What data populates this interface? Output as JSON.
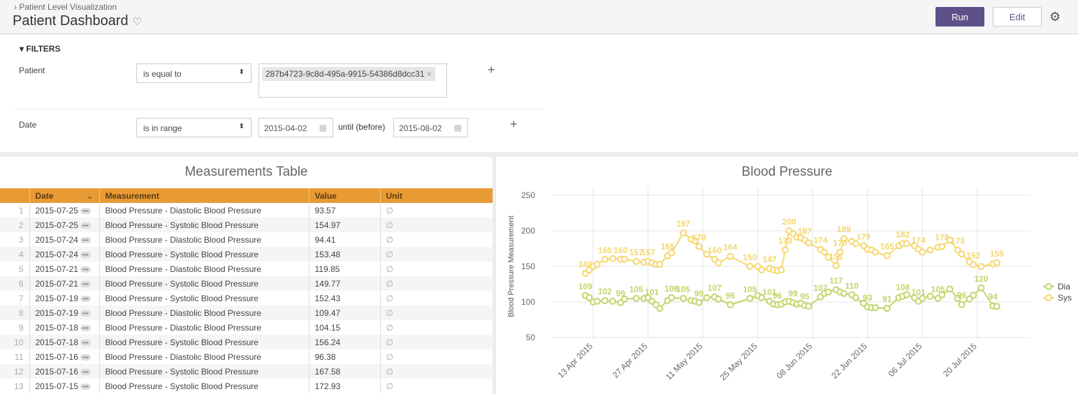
{
  "header": {
    "breadcrumb": "Patient Level Visualization",
    "title": "Patient Dashboard",
    "run_label": "Run",
    "edit_label": "Edit"
  },
  "filters": {
    "title": "FILTERS",
    "patient": {
      "label": "Patient",
      "operator": "is equal to",
      "value": "287b4723-9c8d-495a-9915-54386d8dcc31"
    },
    "date": {
      "label": "Date",
      "operator": "is in range",
      "from": "2015-04-02",
      "until_label": "until (before)",
      "to": "2015-08-02"
    }
  },
  "table": {
    "title": "Measurements Table",
    "columns": [
      "Date",
      "Measurement",
      "Value",
      "Unit"
    ],
    "rows": [
      [
        "1",
        "2015-07-25",
        "Blood Pressure - Diastolic Blood Pressure",
        "93.57",
        "∅"
      ],
      [
        "2",
        "2015-07-25",
        "Blood Pressure - Systolic Blood Pressure",
        "154.97",
        "∅"
      ],
      [
        "3",
        "2015-07-24",
        "Blood Pressure - Diastolic Blood Pressure",
        "94.41",
        "∅"
      ],
      [
        "4",
        "2015-07-24",
        "Blood Pressure - Systolic Blood Pressure",
        "153.48",
        "∅"
      ],
      [
        "5",
        "2015-07-21",
        "Blood Pressure - Diastolic Blood Pressure",
        "119.85",
        "∅"
      ],
      [
        "6",
        "2015-07-21",
        "Blood Pressure - Systolic Blood Pressure",
        "149.77",
        "∅"
      ],
      [
        "7",
        "2015-07-19",
        "Blood Pressure - Systolic Blood Pressure",
        "152.43",
        "∅"
      ],
      [
        "8",
        "2015-07-19",
        "Blood Pressure - Diastolic Blood Pressure",
        "109.47",
        "∅"
      ],
      [
        "9",
        "2015-07-18",
        "Blood Pressure - Diastolic Blood Pressure",
        "104.15",
        "∅"
      ],
      [
        "10",
        "2015-07-18",
        "Blood Pressure - Systolic Blood Pressure",
        "156.24",
        "∅"
      ],
      [
        "11",
        "2015-07-16",
        "Blood Pressure - Diastolic Blood Pressure",
        "96.38",
        "∅"
      ],
      [
        "12",
        "2015-07-16",
        "Blood Pressure - Systolic Blood Pressure",
        "167.58",
        "∅"
      ],
      [
        "13",
        "2015-07-15",
        "Blood Pressure - Systolic Blood Pressure",
        "172.93",
        "∅"
      ]
    ]
  },
  "chart_data": {
    "type": "line",
    "title": "Blood Pressure",
    "ylabel": "Blood Pressure Measurement",
    "ylim": [
      50,
      250
    ],
    "yticks": [
      50,
      100,
      150,
      200,
      250
    ],
    "xticks": [
      "2015-04-13",
      "2015-04-27",
      "2015-05-11",
      "2015-05-25",
      "2015-06-08",
      "2015-06-22",
      "2015-07-06",
      "2015-07-20"
    ],
    "xtick_labels": [
      "13 Apr 2015",
      "27 Apr 2015",
      "11 May 2015",
      "25 May 2015",
      "08 Jun 2015",
      "22 Jun 2015",
      "06 Jul 2015",
      "20 Jul 2015"
    ],
    "grid": true,
    "legend": "right",
    "x": [
      "2015-04-11",
      "2015-04-12",
      "2015-04-13",
      "2015-04-14",
      "2015-04-16",
      "2015-04-18",
      "2015-04-20",
      "2015-04-21",
      "2015-04-24",
      "2015-04-26",
      "2015-04-27",
      "2015-04-28",
      "2015-04-29",
      "2015-04-30",
      "2015-05-02",
      "2015-05-03",
      "2015-05-06",
      "2015-05-08",
      "2015-05-09",
      "2015-05-10",
      "2015-05-12",
      "2015-05-14",
      "2015-05-15",
      "2015-05-18",
      "2015-05-23",
      "2015-05-25",
      "2015-05-26",
      "2015-05-28",
      "2015-05-29",
      "2015-05-30",
      "2015-05-31",
      "2015-06-01",
      "2015-06-02",
      "2015-06-03",
      "2015-06-04",
      "2015-06-05",
      "2015-06-06",
      "2015-06-07",
      "2015-06-10",
      "2015-06-11",
      "2015-06-12",
      "2015-06-14",
      "2015-06-15",
      "2015-06-16",
      "2015-06-18",
      "2015-06-19",
      "2015-06-21",
      "2015-06-22",
      "2015-06-23",
      "2015-06-24",
      "2015-06-27",
      "2015-06-30",
      "2015-07-01",
      "2015-07-02",
      "2015-07-04",
      "2015-07-05",
      "2015-07-06",
      "2015-07-08",
      "2015-07-10",
      "2015-07-11",
      "2015-07-13",
      "2015-07-15",
      "2015-07-16",
      "2015-07-18",
      "2015-07-19",
      "2015-07-21",
      "2015-07-24",
      "2015-07-25"
    ],
    "series": [
      {
        "name": "Dia",
        "color": "#bfd66b",
        "values": [
          109,
          106,
          100,
          101,
          102,
          101,
          99,
          104,
          105,
          105,
          106,
          101,
          96,
          91,
          102,
          106,
          105,
          102,
          101,
          99,
          106,
          107,
          104,
          96,
          105,
          109,
          106,
          101,
          97,
          96,
          97,
          100,
          101,
          99,
          97,
          98,
          95,
          94,
          107,
          112,
          114,
          117,
          114,
          112,
          110,
          106,
          98,
          93,
          92,
          92,
          91,
          106,
          108,
          110,
          106,
          101,
          105,
          108,
          105,
          110,
          118,
          105,
          96.38,
          104.15,
          109.47,
          119.85,
          94.41,
          93.57
        ],
        "labeled": [
          "2015-04-11",
          "2015-04-16",
          "2015-04-20",
          "2015-04-24",
          "2015-04-28",
          "2015-05-03",
          "2015-05-06",
          "2015-05-10",
          "2015-05-14",
          "2015-05-18",
          "2015-05-23",
          "2015-05-28",
          "2015-05-30",
          "2015-06-03",
          "2015-06-06",
          "2015-06-10",
          "2015-06-14",
          "2015-06-18",
          "2015-06-22",
          "2015-06-27",
          "2015-07-01",
          "2015-07-05",
          "2015-07-10",
          "2015-07-16",
          "2015-07-21",
          "2015-07-24"
        ]
      },
      {
        "name": "Sys",
        "color": "#f5d76e",
        "values": [
          140,
          145,
          150,
          153,
          160,
          161,
          160,
          160,
          157,
          156,
          157,
          155,
          153,
          153,
          165,
          169,
          197,
          188,
          186,
          178,
          167,
          160,
          155,
          164,
          150,
          150,
          145,
          147,
          145,
          144,
          145,
          173,
          200,
          196,
          191,
          190,
          187,
          183,
          174,
          170,
          163,
          151,
          170,
          189,
          185,
          182,
          179,
          174,
          173,
          170,
          165,
          179,
          182,
          182,
          179,
          174,
          170,
          173,
          177,
          178,
          187,
          172.93,
          167.58,
          156.24,
          152.43,
          149.77,
          153.48,
          154.97
        ],
        "labeled": [
          "2015-04-11",
          "2015-04-16",
          "2015-04-20",
          "2015-04-24",
          "2015-04-27",
          "2015-05-02",
          "2015-05-06",
          "2015-05-10",
          "2015-05-14",
          "2015-05-18",
          "2015-05-23",
          "2015-05-28",
          "2015-06-01",
          "2015-06-02",
          "2015-06-06",
          "2015-06-10",
          "2015-06-14",
          "2015-06-15",
          "2015-06-16",
          "2015-06-21",
          "2015-06-27",
          "2015-07-01",
          "2015-07-05",
          "2015-07-11",
          "2015-07-15",
          "2015-07-19",
          "2015-07-25"
        ]
      }
    ]
  }
}
